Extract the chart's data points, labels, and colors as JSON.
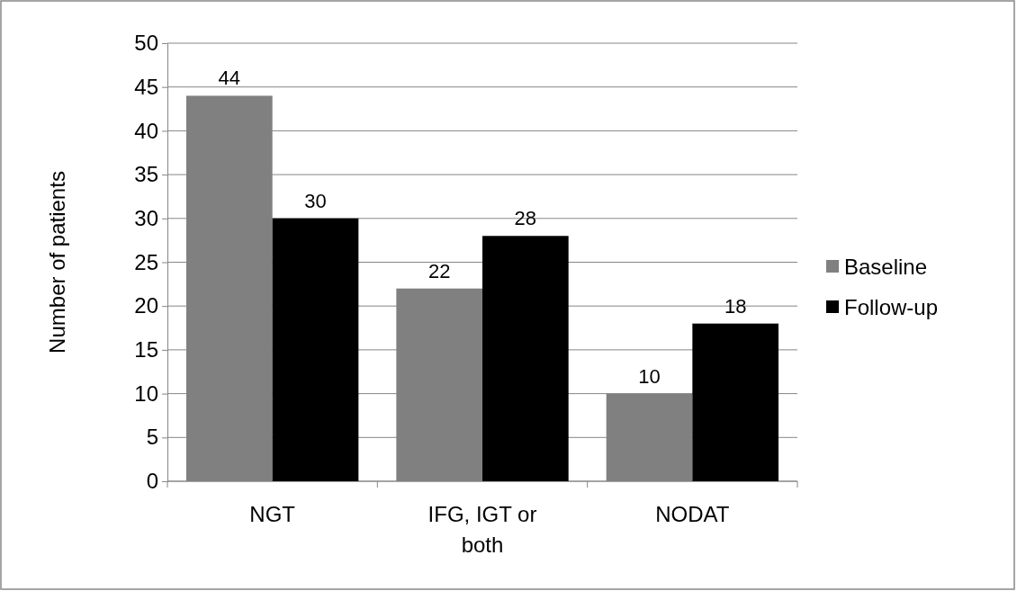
{
  "chart_data": {
    "type": "bar",
    "ylabel": "Number of patients",
    "categories": [
      "NGT",
      "IFG, IGT or both",
      "NODAT"
    ],
    "series": [
      {
        "name": "Baseline",
        "color": "#808080",
        "values": [
          44,
          22,
          10
        ]
      },
      {
        "name": "Follow-up",
        "color": "#000000",
        "values": [
          30,
          28,
          18
        ]
      }
    ],
    "ylim": [
      0,
      50
    ],
    "yticks": [
      0,
      5,
      10,
      15,
      20,
      25,
      30,
      35,
      40,
      45,
      50
    ],
    "grid": "y",
    "legend": "right",
    "data_labels": true
  }
}
